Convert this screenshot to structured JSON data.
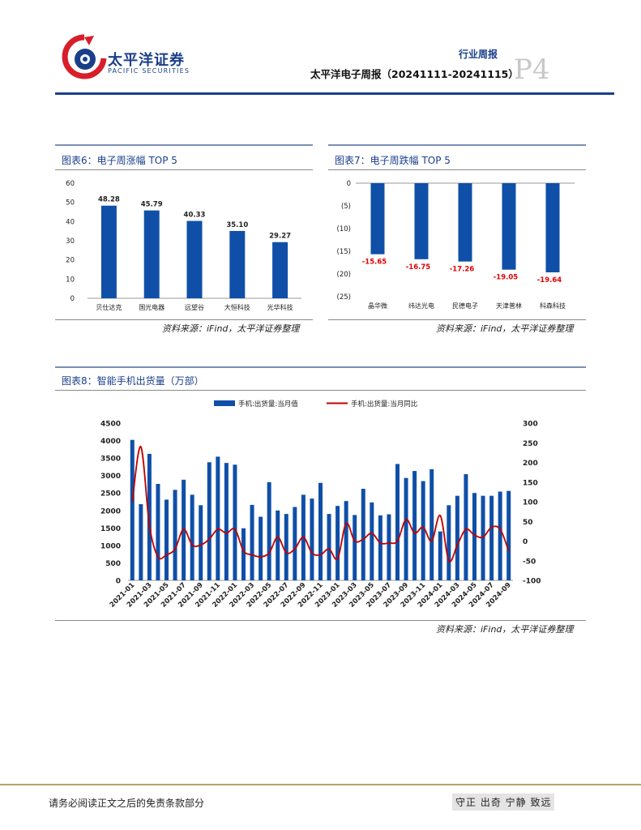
{
  "header": {
    "company_cn": "太平洋证券",
    "company_en": "PACIFIC SECURITIES",
    "report_type": "行业周报",
    "report_title": "太平洋电子周报（20241111-20241115）",
    "page_label": "P4"
  },
  "figures": {
    "fig6": {
      "title": "图表6：电子周涨幅 TOP 5",
      "source": "资料来源：iFind，太平洋证券整理"
    },
    "fig7": {
      "title": "图表7：电子周跌幅 TOP 5",
      "source": "资料来源：iFind，太平洋证券整理"
    },
    "fig8": {
      "title": "图表8：智能手机出货量（万部）",
      "source": "资料来源：iFind，太平洋证券整理"
    }
  },
  "chart_data": [
    {
      "type": "bar",
      "categories": [
        "贝仕达克",
        "国光电器",
        "远望谷",
        "大恒科技",
        "光华科技"
      ],
      "values": [
        48.28,
        45.79,
        40.33,
        35.1,
        29.27
      ],
      "value_labels": [
        "48.28",
        "45.79",
        "40.33",
        "35.10",
        "29.27"
      ],
      "yticks": [
        "0",
        "10",
        "20",
        "30",
        "40",
        "50",
        "60"
      ],
      "ylim": [
        0,
        60
      ],
      "color": "#0f4fa8"
    },
    {
      "type": "bar",
      "categories": [
        "晶华微",
        "纬达光电",
        "民德电子",
        "天津普林",
        "科森科技"
      ],
      "values": [
        -15.65,
        -16.75,
        -17.26,
        -19.05,
        -19.64
      ],
      "value_labels": [
        "-15.65",
        "-16.75",
        "-17.26",
        "-19.05",
        "-19.64"
      ],
      "yticks": [
        "0",
        "(5)",
        "(10)",
        "(15)",
        "(20)",
        "(25)"
      ],
      "ylim": [
        -25,
        0
      ],
      "color": "#0f4fa8",
      "label_color": "#e00000"
    },
    {
      "type": "bar+line",
      "legend": [
        "手机:出货量:当月值",
        "手机:出货量:当月同比"
      ],
      "legend_placement": "top",
      "x": [
        "2021-01",
        "2021-02",
        "2021-03",
        "2021-04",
        "2021-05",
        "2021-06",
        "2021-07",
        "2021-08",
        "2021-09",
        "2021-10",
        "2021-11",
        "2021-12",
        "2022-01",
        "2022-02",
        "2022-03",
        "2022-04",
        "2022-05",
        "2022-06",
        "2022-07",
        "2022-08",
        "2022-09",
        "2022-10",
        "2022-11",
        "2022-12",
        "2023-01",
        "2023-02",
        "2023-03",
        "2023-04",
        "2023-05",
        "2023-06",
        "2023-07",
        "2023-08",
        "2023-09",
        "2023-10",
        "2023-11",
        "2023-12",
        "2024-01",
        "2024-02",
        "2024-03",
        "2024-04",
        "2024-05",
        "2024-06",
        "2024-07",
        "2024-08",
        "2024-09"
      ],
      "xticks": [
        "2021-01",
        "2021-03",
        "2021-05",
        "2021-07",
        "2021-09",
        "2021-11",
        "2022-01",
        "2022-03",
        "2022-05",
        "2022-07",
        "2022-09",
        "2022-11",
        "2023-01",
        "2023-03",
        "2023-05",
        "2023-07",
        "2023-09",
        "2023-11",
        "2024-01",
        "2024-03",
        "2024-05",
        "2024-07",
        "2024-09"
      ],
      "bar_values": [
        4020,
        2180,
        3620,
        2760,
        2310,
        2590,
        2880,
        2450,
        2150,
        3380,
        3540,
        3360,
        3310,
        1490,
        2160,
        1820,
        2810,
        2000,
        1900,
        2100,
        2450,
        2340,
        2790,
        1900,
        2130,
        2270,
        1870,
        2620,
        2230,
        1860,
        1890,
        3330,
        2930,
        3130,
        2840,
        3180,
        1400,
        2150,
        2420,
        3040,
        2500,
        2420,
        2420,
        2540,
        2560
      ],
      "line_values": [
        100,
        240,
        40,
        -40,
        -35,
        -20,
        30,
        -10,
        -10,
        5,
        30,
        20,
        30,
        -25,
        -35,
        -40,
        -30,
        10,
        -30,
        -20,
        10,
        -30,
        -35,
        -20,
        -45,
        45,
        0,
        5,
        20,
        -5,
        -5,
        0,
        55,
        20,
        35,
        0,
        65,
        -50,
        -10,
        30,
        15,
        10,
        35,
        30,
        -25
      ],
      "yticks_left": [
        "0",
        "500",
        "1000",
        "1500",
        "2000",
        "2500",
        "3000",
        "3500",
        "4000",
        "4500"
      ],
      "ylim_left": [
        0,
        4500
      ],
      "yticks_right": [
        "-100",
        "-50",
        "0",
        "50",
        "100",
        "150",
        "200",
        "250",
        "300"
      ],
      "ylim_right": [
        -100,
        300
      ],
      "bar_color": "#0f4fa8",
      "line_color": "#c00000"
    }
  ],
  "footer": {
    "disclaimer": "请务必阅读正文之后的免责条款部分",
    "slogan": "守正 出奇 宁静 致远"
  }
}
